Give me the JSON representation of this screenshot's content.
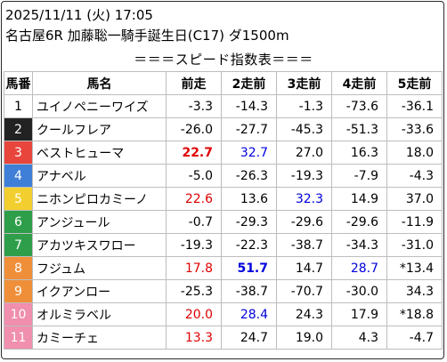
{
  "header": {
    "datetime": "2025/11/11 (火) 17:05",
    "race": "名古屋6R 加藤聡一騎手誕生日(C17) ダ1500m",
    "section": "＝＝＝スピード指数表＝＝＝"
  },
  "table": {
    "columns": [
      "馬番",
      "馬名",
      "前走",
      "2走前",
      "3走前",
      "4走前",
      "5走前"
    ],
    "rows": [
      {
        "no": "1",
        "bg": "#ffffff",
        "fg": "#000000",
        "name": "ユイノペニーワイズ",
        "v": [
          "-3.3",
          "-14.3",
          "-1.3",
          "-73.6",
          "-36.1"
        ],
        "c": [
          "#000000",
          "#000000",
          "#000000",
          "#000000",
          "#000000"
        ],
        "w": [
          0,
          0,
          0,
          0,
          0
        ]
      },
      {
        "no": "2",
        "bg": "#222222",
        "fg": "#ffffff",
        "name": "クールフレア",
        "v": [
          "-26.0",
          "-27.7",
          "-45.3",
          "-51.3",
          "-33.6"
        ],
        "c": [
          "#000000",
          "#000000",
          "#000000",
          "#000000",
          "#000000"
        ],
        "w": [
          0,
          0,
          0,
          0,
          0
        ]
      },
      {
        "no": "3",
        "bg": "#e8453c",
        "fg": "#ffffff",
        "name": "ベストヒューマ",
        "v": [
          "22.7",
          "32.7",
          "27.0",
          "16.3",
          "18.0"
        ],
        "c": [
          "#e00000",
          "#0000dd",
          "#000000",
          "#000000",
          "#000000"
        ],
        "w": [
          1,
          0,
          0,
          0,
          0
        ]
      },
      {
        "no": "4",
        "bg": "#3f7fd8",
        "fg": "#ffffff",
        "name": "アナベル",
        "v": [
          "-5.0",
          "-26.3",
          "-19.3",
          "-7.9",
          "-4.3"
        ],
        "c": [
          "#000000",
          "#000000",
          "#000000",
          "#000000",
          "#000000"
        ],
        "w": [
          0,
          0,
          0,
          0,
          0
        ]
      },
      {
        "no": "5",
        "bg": "#f2cf2e",
        "fg": "#ffffff",
        "name": "ニホンピロカミーノ",
        "v": [
          "22.6",
          "13.6",
          "32.3",
          "14.9",
          "37.0"
        ],
        "c": [
          "#e00000",
          "#000000",
          "#0000dd",
          "#000000",
          "#000000"
        ],
        "w": [
          0,
          0,
          0,
          0,
          0
        ]
      },
      {
        "no": "6",
        "bg": "#2f9e4a",
        "fg": "#ffffff",
        "name": "アンジュール",
        "v": [
          "-0.7",
          "-29.3",
          "-29.6",
          "-29.6",
          "-11.9"
        ],
        "c": [
          "#000000",
          "#000000",
          "#000000",
          "#000000",
          "#000000"
        ],
        "w": [
          0,
          0,
          0,
          0,
          0
        ]
      },
      {
        "no": "7",
        "bg": "#2f9e4a",
        "fg": "#ffffff",
        "name": "アカツキスワロー",
        "v": [
          "-19.3",
          "-22.3",
          "-38.7",
          "-34.3",
          "-31.0"
        ],
        "c": [
          "#000000",
          "#000000",
          "#000000",
          "#000000",
          "#000000"
        ],
        "w": [
          0,
          0,
          0,
          0,
          0
        ]
      },
      {
        "no": "8",
        "bg": "#ef8f3a",
        "fg": "#ffffff",
        "name": "フジュム",
        "v": [
          "17.8",
          "51.7",
          "14.7",
          "28.7",
          "*13.4"
        ],
        "c": [
          "#e00000",
          "#0000dd",
          "#000000",
          "#0000dd",
          "#000000"
        ],
        "w": [
          0,
          1,
          0,
          0,
          0
        ]
      },
      {
        "no": "9",
        "bg": "#ef8f3a",
        "fg": "#ffffff",
        "name": "イクアンロー",
        "v": [
          "-25.3",
          "-38.7",
          "-70.7",
          "-30.0",
          "34.3"
        ],
        "c": [
          "#000000",
          "#000000",
          "#000000",
          "#000000",
          "#000000"
        ],
        "w": [
          0,
          0,
          0,
          0,
          0
        ]
      },
      {
        "no": "10",
        "bg": "#f08fae",
        "fg": "#ffffff",
        "name": "オルミラベル",
        "v": [
          "20.0",
          "28.4",
          "24.3",
          "17.9",
          "*18.8"
        ],
        "c": [
          "#e00000",
          "#0000dd",
          "#000000",
          "#000000",
          "#000000"
        ],
        "w": [
          0,
          0,
          0,
          0,
          0
        ]
      },
      {
        "no": "11",
        "bg": "#f08fae",
        "fg": "#ffffff",
        "name": "カミーチェ",
        "v": [
          "13.3",
          "24.7",
          "19.0",
          "4.3",
          "-4.7"
        ],
        "c": [
          "#e00000",
          "#000000",
          "#000000",
          "#000000",
          "#000000"
        ],
        "w": [
          0,
          0,
          0,
          0,
          0
        ]
      }
    ]
  }
}
